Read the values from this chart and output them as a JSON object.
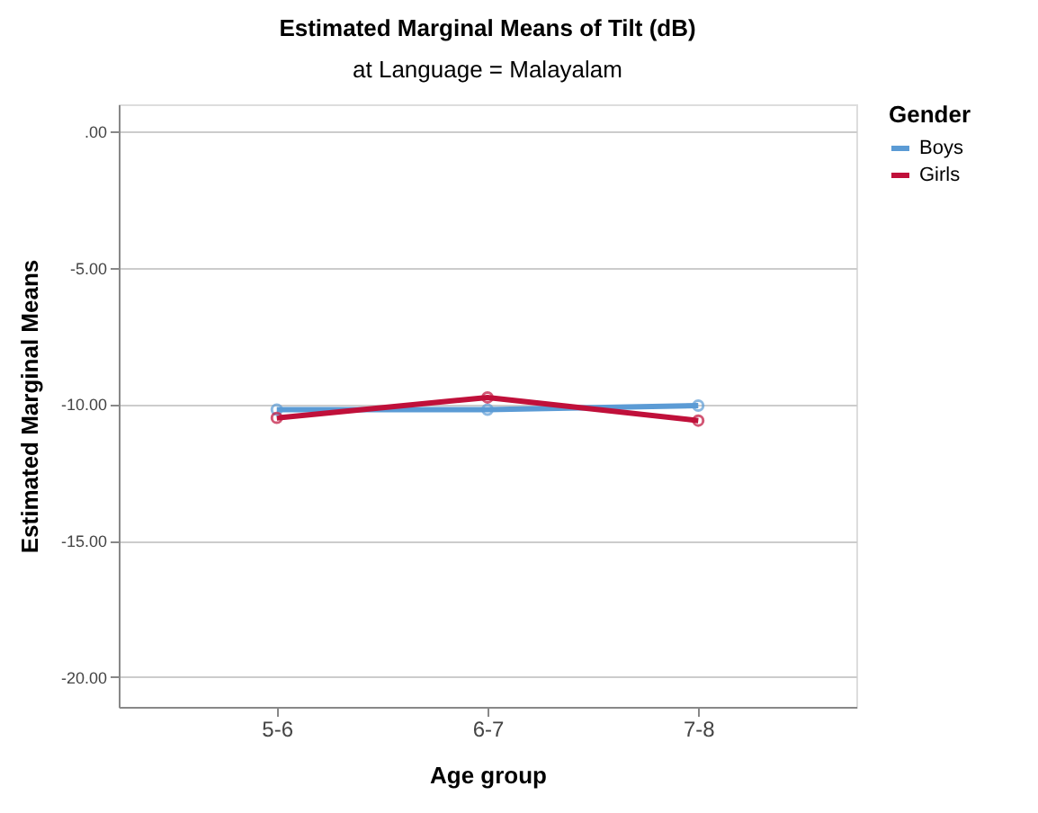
{
  "chart_data": {
    "type": "line",
    "title": "Estimated Marginal Means of Tilt (dB)",
    "subtitle": "at Language = Malayalam",
    "xlabel": "Age group",
    "ylabel": "Estimated Marginal Means",
    "legend_title": "Gender",
    "categories": [
      "5-6",
      "6-7",
      "7-8"
    ],
    "series": [
      {
        "name": "Boys",
        "color": "#5b9bd5",
        "values": [
          -10.2,
          -10.2,
          -10.05
        ]
      },
      {
        "name": "Girls",
        "color": "#c0103a",
        "values": [
          -10.5,
          -9.75,
          -10.6
        ]
      }
    ],
    "ylim": [
      -21.1,
      1.0
    ],
    "yticks": [
      {
        "value": 0,
        "label": ".00"
      },
      {
        "value": -5,
        "label": "-5.00"
      },
      {
        "value": -10,
        "label": "-10.00"
      },
      {
        "value": -15,
        "label": "-15.00"
      },
      {
        "value": -20,
        "label": "-20.00"
      }
    ],
    "grid": "y",
    "legend": "top right",
    "marker": "circle",
    "line_style": "solid"
  }
}
